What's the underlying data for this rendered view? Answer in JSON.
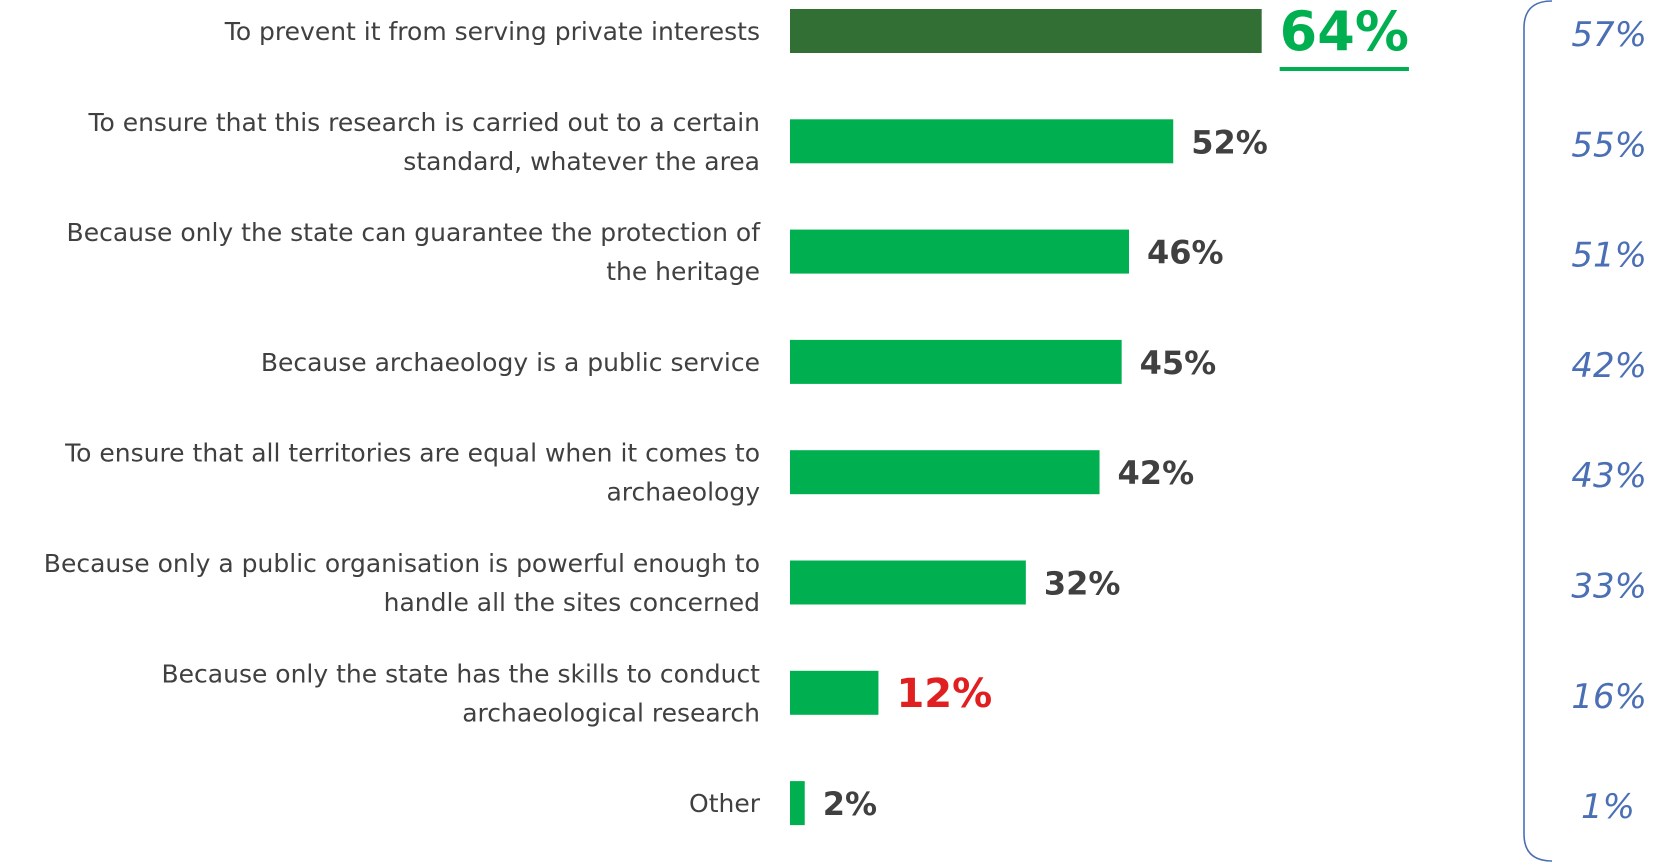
{
  "chart_data": {
    "type": "bar",
    "orientation": "horizontal",
    "categories": [
      [
        "To prevent it from serving private interests"
      ],
      [
        "To ensure that this research is carried out to a certain",
        "standard, whatever the area"
      ],
      [
        "Because only the state can guarantee the protection of",
        "the heritage"
      ],
      [
        "Because archaeology is a public service"
      ],
      [
        "To ensure that all territories are equal when it comes to",
        "archaeology"
      ],
      [
        "Because only a public organisation is powerful enough to",
        "handle all the sites concerned"
      ],
      [
        "Because only the state has the skills to conduct",
        "archaeological research"
      ],
      [
        "Other"
      ]
    ],
    "series": [
      {
        "values": [
          64,
          52,
          46,
          45,
          42,
          32,
          12,
          2
        ],
        "value_labels": [
          "64%",
          "52%",
          "46%",
          "45%",
          "42%",
          "32%",
          "12%",
          "2%"
        ]
      },
      {
        "values": [
          57,
          55,
          51,
          42,
          43,
          33,
          16,
          1
        ],
        "value_labels": [
          "57%",
          "55%",
          "51%",
          "42%",
          "43%",
          "33%",
          "16%",
          "1%"
        ]
      }
    ],
    "highlights": {
      "top": 0,
      "low": 6
    },
    "colors": {
      "bar": "#00b050",
      "bar_top": "#326f35",
      "value_text": "#404040",
      "value_top_text": "#00b050",
      "value_low_text": "#e02020",
      "comparison_text": "#4a6fb5",
      "bracket": "#4a6fb5",
      "category_text": "#404040"
    },
    "xlim": [
      0,
      100
    ],
    "grid": false,
    "legend": "none"
  }
}
